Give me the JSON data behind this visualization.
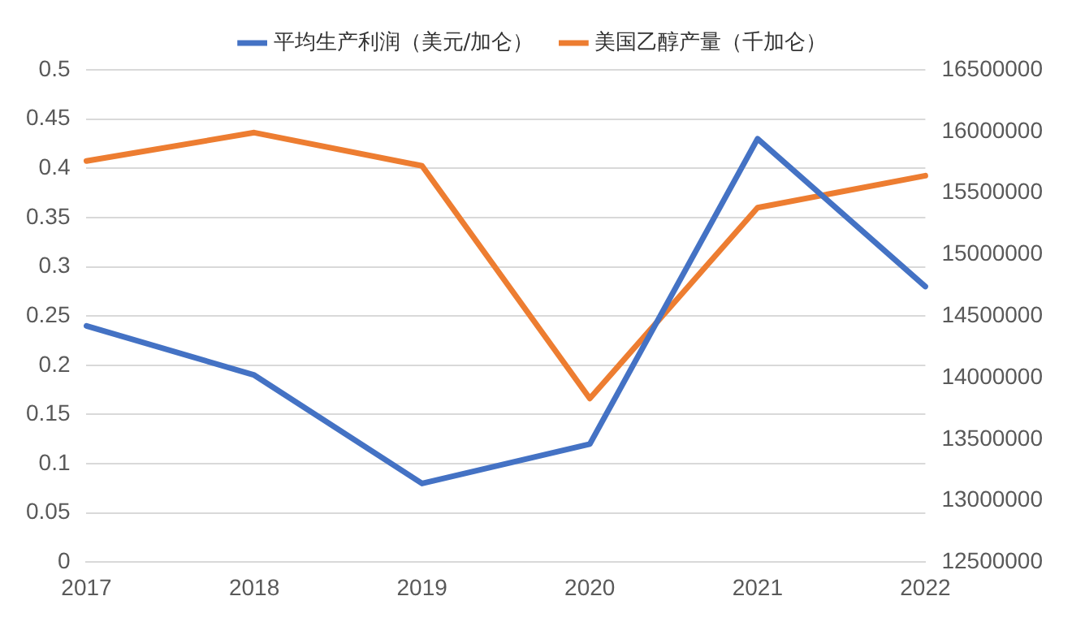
{
  "chart_data": {
    "type": "line",
    "categories": [
      "2017",
      "2018",
      "2019",
      "2020",
      "2021",
      "2022"
    ],
    "series": [
      {
        "name": "平均生产利润（美元/加仑）",
        "color": "#4472c4",
        "values": [
          0.24,
          0.19,
          0.08,
          0.12,
          0.43,
          0.28
        ]
      },
      {
        "name": "美国乙醇产量（千加仑）",
        "color": "#ed7d31",
        "axis": "y2",
        "values": [
          15760000,
          15990000,
          15720000,
          13830000,
          15380000,
          15640000
        ]
      }
    ],
    "ylim": [
      0,
      0.5
    ],
    "yticks": [
      0,
      0.05,
      0.1,
      0.15,
      0.2,
      0.25,
      0.3,
      0.35,
      0.4,
      0.45,
      0.5
    ],
    "y2lim": [
      12500000,
      16500000
    ],
    "y2ticks": [
      12500000,
      13000000,
      13500000,
      14000000,
      14500000,
      15000000,
      15500000,
      16000000,
      16500000
    ],
    "grid": "y",
    "legend": "top",
    "marker": "none",
    "line_style": "solid"
  }
}
